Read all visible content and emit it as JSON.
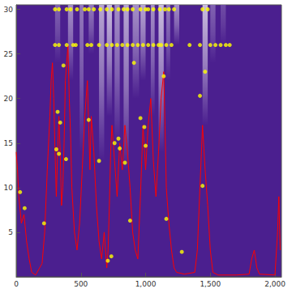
{
  "chart_data": {
    "type": "line",
    "xlim": [
      0,
      2050
    ],
    "ylim": [
      0,
      30.5
    ],
    "xticks": [
      0,
      500,
      1000,
      1500,
      2000
    ],
    "yticks": [
      5,
      10,
      15,
      20,
      25,
      30
    ],
    "density": {
      "colors": [
        "#4b1f8f",
        "#ffffff"
      ],
      "color_range": [
        0,
        1
      ],
      "cells": [
        [
          300,
          340,
          24,
          30.5,
          0.3
        ],
        [
          400,
          440,
          22,
          30.5,
          0.5
        ],
        [
          490,
          520,
          14,
          30.5,
          0.4
        ],
        [
          560,
          600,
          25,
          30.5,
          0.4
        ],
        [
          640,
          680,
          13,
          30.5,
          0.6
        ],
        [
          700,
          740,
          18,
          30.5,
          0.7
        ],
        [
          760,
          800,
          15,
          30.5,
          0.5
        ],
        [
          830,
          870,
          12,
          30.5,
          0.6
        ],
        [
          900,
          950,
          20,
          30.5,
          0.5
        ],
        [
          960,
          1000,
          22,
          30.5,
          0.6
        ],
        [
          1040,
          1070,
          18,
          30.5,
          0.5
        ],
        [
          1100,
          1140,
          14,
          30.5,
          0.7
        ],
        [
          1160,
          1190,
          22,
          30.5,
          0.4
        ],
        [
          1220,
          1260,
          26,
          30.5,
          0.5
        ],
        [
          1440,
          1480,
          17,
          30.5,
          0.7
        ],
        [
          1500,
          1540,
          24,
          30.5,
          0.3
        ],
        [
          1580,
          1620,
          26,
          30.5,
          0.2
        ]
      ]
    },
    "series": [
      {
        "type": "line",
        "color": "#ff0000",
        "line_style": "solid",
        "x": [
          0,
          10,
          20,
          40,
          60,
          80,
          100,
          120,
          150,
          200,
          220,
          240,
          260,
          270,
          280,
          290,
          300,
          310,
          320,
          330,
          340,
          350,
          360,
          370,
          380,
          400,
          410,
          420,
          430,
          450,
          470,
          490,
          510,
          530,
          550,
          560,
          570,
          580,
          600,
          620,
          640,
          660,
          680,
          700,
          710,
          720,
          730,
          740,
          760,
          780,
          800,
          820,
          840,
          860,
          880,
          900,
          920,
          940,
          960,
          980,
          1000,
          1020,
          1040,
          1060,
          1080,
          1100,
          1120,
          1140,
          1150,
          1160,
          1180,
          1200,
          1220,
          1240,
          1300,
          1380,
          1400,
          1420,
          1440,
          1460,
          1480,
          1500,
          1520,
          1560,
          1700,
          1800,
          1820,
          1840,
          1860,
          1880,
          2000,
          2020,
          2030,
          2040
        ],
        "values": [
          14,
          12,
          9,
          6,
          7,
          4,
          2,
          0.5,
          0.2,
          1.5,
          5,
          12,
          18,
          22,
          24,
          20,
          14,
          9,
          14,
          18,
          14,
          8,
          10,
          15,
          22,
          26,
          20,
          16,
          10,
          5,
          3,
          6,
          12,
          18,
          22,
          17,
          12,
          18,
          14,
          8,
          4,
          2,
          5,
          1,
          3,
          8,
          14,
          17,
          13,
          9,
          15,
          12,
          17,
          14,
          10,
          5,
          3,
          2,
          9,
          17,
          12,
          17,
          20,
          13,
          9,
          14,
          20,
          23,
          17,
          10,
          6,
          3,
          1,
          0.5,
          0.3,
          0.5,
          3,
          10,
          17,
          12,
          8,
          3,
          0.5,
          0.2,
          0.2,
          0.3,
          2,
          3,
          1,
          0.3,
          0.2,
          5,
          9,
          3
        ]
      },
      {
        "type": "scatter",
        "color": "#ffff00",
        "marker": "circle",
        "x": [
          300,
          330,
          390,
          420,
          470,
          530,
          560,
          600,
          650,
          700,
          740,
          790,
          830,
          860,
          900,
          960,
          1000,
          1020,
          1060,
          1110,
          1150,
          1180,
          1220,
          1440,
          1480,
          300,
          330,
          390,
          440,
          460,
          550,
          580,
          640,
          700,
          740,
          780,
          820,
          860,
          900,
          940,
          980,
          1020,
          1060,
          1100,
          1120,
          1160,
          1200,
          1340,
          1420,
          1500,
          1540,
          1580,
          1620,
          1650,
          30,
          65,
          215,
          310,
          320,
          330,
          340,
          365,
          385,
          560,
          640,
          708,
          735,
          760,
          790,
          800,
          840,
          880,
          910,
          960,
          990,
          1000,
          1140,
          1160,
          1280,
          1420,
          1440,
          1460
        ],
        "values": [
          30,
          30,
          30,
          30,
          30,
          30,
          30,
          30,
          30,
          30,
          30,
          30,
          30,
          30,
          30,
          30,
          30,
          30,
          30,
          30,
          30,
          30,
          30,
          30,
          30,
          26,
          26,
          26,
          26,
          26,
          26,
          26,
          26,
          26,
          26,
          26,
          26,
          26,
          26,
          26,
          26,
          26,
          26,
          26,
          26,
          26,
          26,
          26,
          26,
          26,
          26,
          26,
          26,
          26,
          9.5,
          7.7,
          6,
          14.3,
          18.5,
          13.8,
          17.3,
          23.7,
          13.2,
          17.6,
          13,
          1.8,
          2.3,
          15,
          15.5,
          14.4,
          12.8,
          6.3,
          24,
          17.8,
          16.8,
          14.7,
          22.5,
          6.5,
          2.8,
          20.3,
          10.2,
          23
        ]
      }
    ]
  }
}
